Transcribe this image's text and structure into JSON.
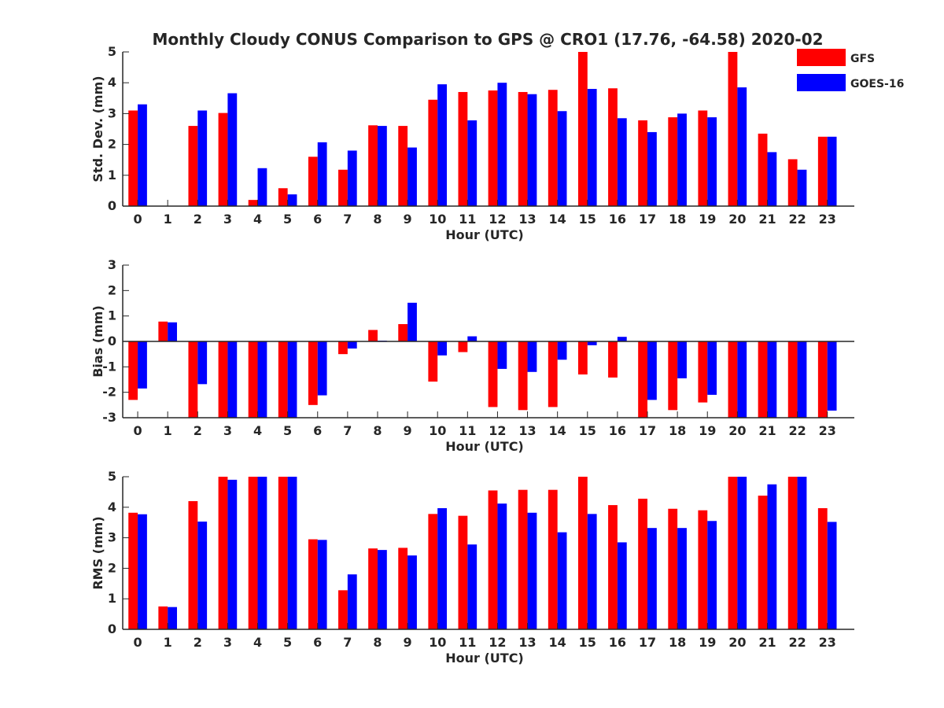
{
  "title": "Monthly Cloudy CONUS Comparison to GPS @ CRO1 (17.76, -64.58) 2020-02",
  "colors": {
    "gfs": "#ff0000",
    "goes": "#0000ff",
    "axis": "#262626"
  },
  "legend": {
    "items": [
      {
        "label": "GFS",
        "color": "#ff0000"
      },
      {
        "label": "GOES-16",
        "color": "#0000ff"
      }
    ]
  },
  "chart_data": [
    {
      "type": "bar",
      "xlabel": "Hour (UTC)",
      "ylabel": "Std. Dev. (mm)",
      "ylim": [
        0,
        5
      ],
      "yticks": [
        0,
        1,
        2,
        3,
        4,
        5
      ],
      "categories": [
        "0",
        "1",
        "2",
        "3",
        "4",
        "5",
        "6",
        "7",
        "8",
        "9",
        "10",
        "11",
        "12",
        "13",
        "14",
        "15",
        "16",
        "17",
        "18",
        "19",
        "20",
        "21",
        "22",
        "23"
      ],
      "series": [
        {
          "name": "GFS",
          "values": [
            3.1,
            0,
            2.6,
            3.02,
            0.2,
            0.58,
            1.6,
            1.18,
            2.62,
            2.6,
            3.45,
            3.7,
            3.75,
            3.7,
            3.77,
            5,
            3.82,
            2.78,
            2.88,
            3.1,
            5,
            2.35,
            1.52,
            2.25
          ]
        },
        {
          "name": "GOES-16",
          "values": [
            3.3,
            0,
            3.1,
            3.66,
            1.23,
            0.38,
            2.07,
            1.8,
            2.6,
            1.9,
            3.95,
            2.78,
            4,
            3.63,
            3.08,
            3.8,
            2.85,
            2.4,
            3,
            2.88,
            3.85,
            1.75,
            1.18,
            2.25
          ]
        }
      ]
    },
    {
      "type": "bar",
      "xlabel": "Hour (UTC)",
      "ylabel": "Bias (mm)",
      "ylim": [
        -3,
        3
      ],
      "yticks": [
        -3,
        -2,
        -1,
        0,
        1,
        2,
        3
      ],
      "categories": [
        "0",
        "1",
        "2",
        "3",
        "4",
        "5",
        "6",
        "7",
        "8",
        "9",
        "10",
        "11",
        "12",
        "13",
        "14",
        "15",
        "16",
        "17",
        "18",
        "19",
        "20",
        "21",
        "22",
        "23"
      ],
      "series": [
        {
          "name": "GFS",
          "values": [
            -2.3,
            0.78,
            -3,
            -3,
            -3,
            -3,
            -2.5,
            -0.5,
            0.45,
            0.68,
            -1.58,
            -0.42,
            -2.58,
            -2.7,
            -2.58,
            -1.3,
            -1.42,
            -3,
            -2.7,
            -2.4,
            -3,
            -3,
            -3,
            -3
          ]
        },
        {
          "name": "GOES-16",
          "values": [
            -1.85,
            0.75,
            -1.68,
            -3,
            -3,
            -3,
            -2.12,
            -0.28,
            0.03,
            1.52,
            -0.55,
            0.2,
            -1.08,
            -1.2,
            -0.72,
            -0.15,
            0.18,
            -2.3,
            -1.45,
            -2.1,
            -3,
            -3,
            -3,
            -2.72
          ]
        }
      ]
    },
    {
      "type": "bar",
      "xlabel": "Hour (UTC)",
      "ylabel": "RMS (mm)",
      "ylim": [
        0,
        5
      ],
      "yticks": [
        0,
        1,
        2,
        3,
        4,
        5
      ],
      "categories": [
        "0",
        "1",
        "2",
        "3",
        "4",
        "5",
        "6",
        "7",
        "8",
        "9",
        "10",
        "11",
        "12",
        "13",
        "14",
        "15",
        "16",
        "17",
        "18",
        "19",
        "20",
        "21",
        "22",
        "23"
      ],
      "series": [
        {
          "name": "GFS",
          "values": [
            3.82,
            0.75,
            4.2,
            5,
            5,
            5,
            2.95,
            1.28,
            2.65,
            2.67,
            3.78,
            3.72,
            4.55,
            4.57,
            4.57,
            5,
            4.07,
            4.28,
            3.95,
            3.9,
            5,
            4.38,
            5,
            3.97
          ]
        },
        {
          "name": "GOES-16",
          "values": [
            3.77,
            0.73,
            3.53,
            4.9,
            5,
            5,
            2.93,
            1.8,
            2.6,
            2.42,
            3.97,
            2.78,
            4.12,
            3.82,
            3.18,
            3.78,
            2.85,
            3.32,
            3.32,
            3.55,
            5,
            4.75,
            5,
            3.52
          ]
        }
      ]
    }
  ]
}
